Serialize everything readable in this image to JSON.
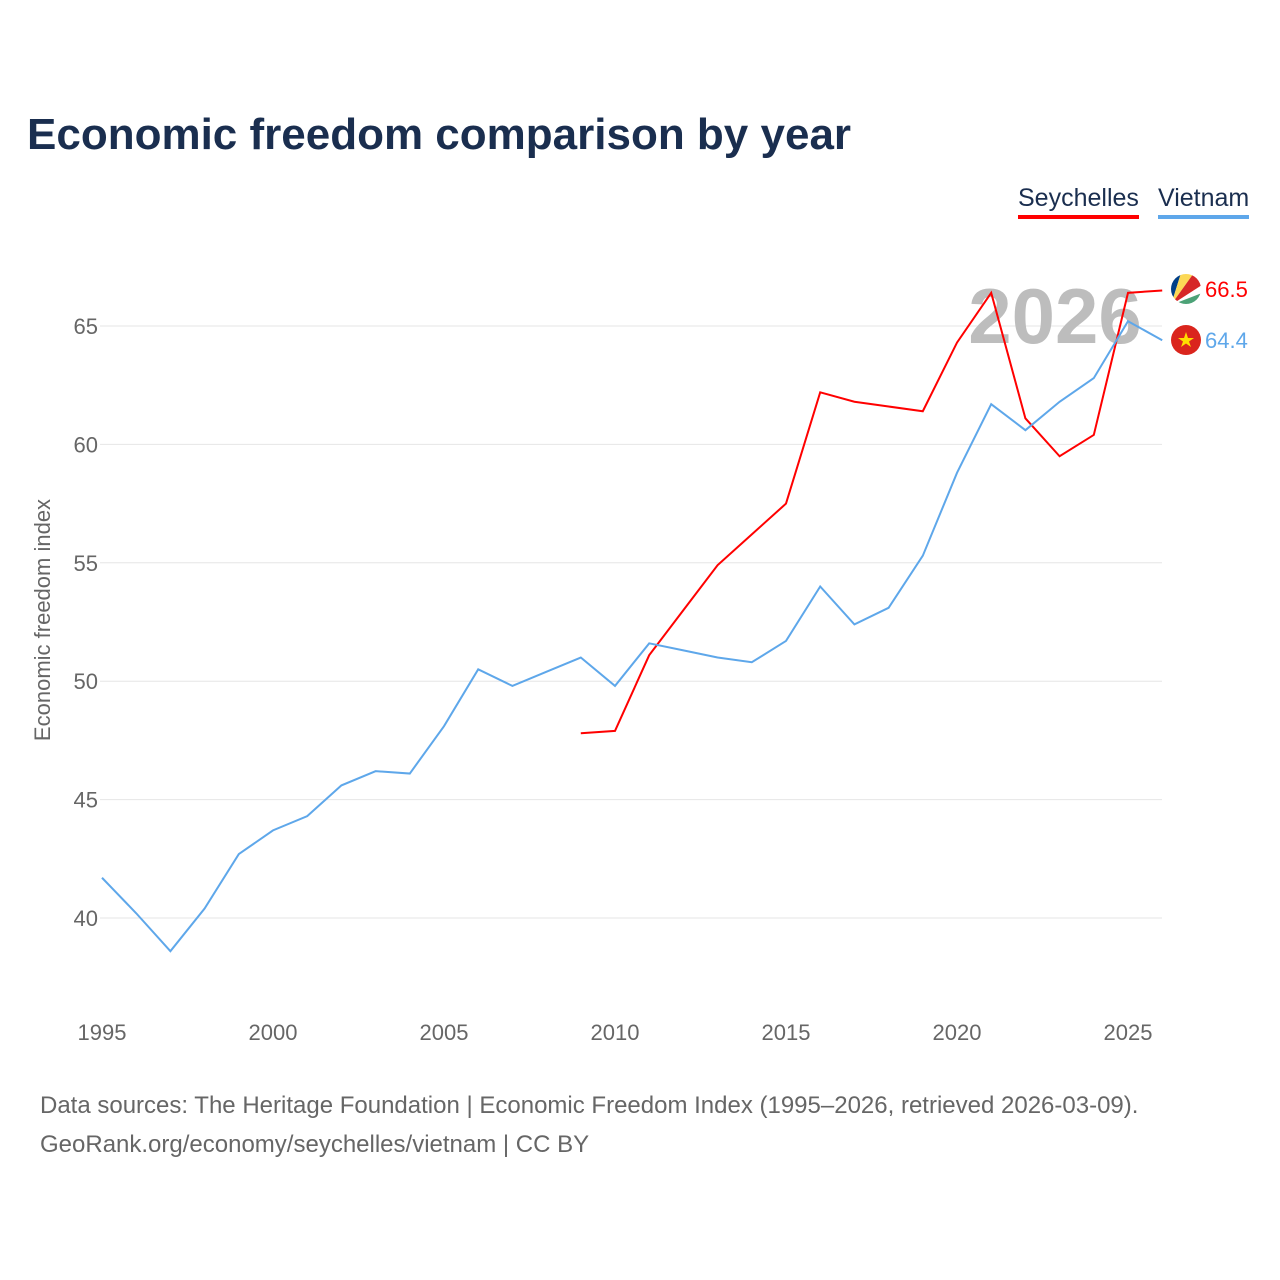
{
  "title": "Economic freedom comparison by year",
  "legend": [
    {
      "name": "Seychelles",
      "color": "#ff0000"
    },
    {
      "name": "Vietnam",
      "color": "#5ea7ea"
    }
  ],
  "footer": {
    "line1": "Data sources: The Heritage Foundation | Economic Freedom Index (1995–2026, retrieved 2026-03-09).",
    "line2": "GeoRank.org/economy/seychelles/vietnam | CC BY"
  },
  "chart_data": {
    "type": "line",
    "title": "Economic freedom comparison by year",
    "xlabel": "",
    "ylabel": "Economic freedom index",
    "watermark_year": "2026",
    "xlim": [
      1995,
      2026
    ],
    "ylim": [
      36,
      68.5
    ],
    "xticks": [
      1995,
      2000,
      2005,
      2010,
      2015,
      2020,
      2025
    ],
    "yticks": [
      40,
      45,
      50,
      55,
      60,
      65
    ],
    "grid": true,
    "legend_position": "top-right",
    "series": [
      {
        "name": "Seychelles",
        "color": "#ff0000",
        "end_label": "66.5",
        "flag": "seychelles-flag",
        "x": [
          2009,
          2010,
          2011,
          2012,
          2013,
          2014,
          2015,
          2016,
          2017,
          2018,
          2019,
          2020,
          2021,
          2022,
          2023,
          2024,
          2025,
          2026
        ],
        "values": [
          47.8,
          47.9,
          51.1,
          53.0,
          54.9,
          56.2,
          57.5,
          62.2,
          61.8,
          61.6,
          61.4,
          64.3,
          66.4,
          61.1,
          59.5,
          60.4,
          66.4,
          66.5
        ]
      },
      {
        "name": "Vietnam",
        "color": "#5ea7ea",
        "end_label": "64.4",
        "flag": "vietnam-flag",
        "x": [
          1995,
          1996,
          1997,
          1998,
          1999,
          2000,
          2001,
          2002,
          2003,
          2004,
          2005,
          2006,
          2007,
          2008,
          2009,
          2010,
          2011,
          2012,
          2013,
          2014,
          2015,
          2016,
          2017,
          2018,
          2019,
          2020,
          2021,
          2022,
          2023,
          2024,
          2025,
          2026
        ],
        "values": [
          41.7,
          40.2,
          38.6,
          40.4,
          42.7,
          43.7,
          44.3,
          45.6,
          46.2,
          46.1,
          48.1,
          50.5,
          49.8,
          50.4,
          51.0,
          49.8,
          51.6,
          51.3,
          51.0,
          50.8,
          51.7,
          54.0,
          52.4,
          53.1,
          55.3,
          58.8,
          61.7,
          60.6,
          61.8,
          62.8,
          65.2,
          64.4
        ]
      }
    ]
  }
}
